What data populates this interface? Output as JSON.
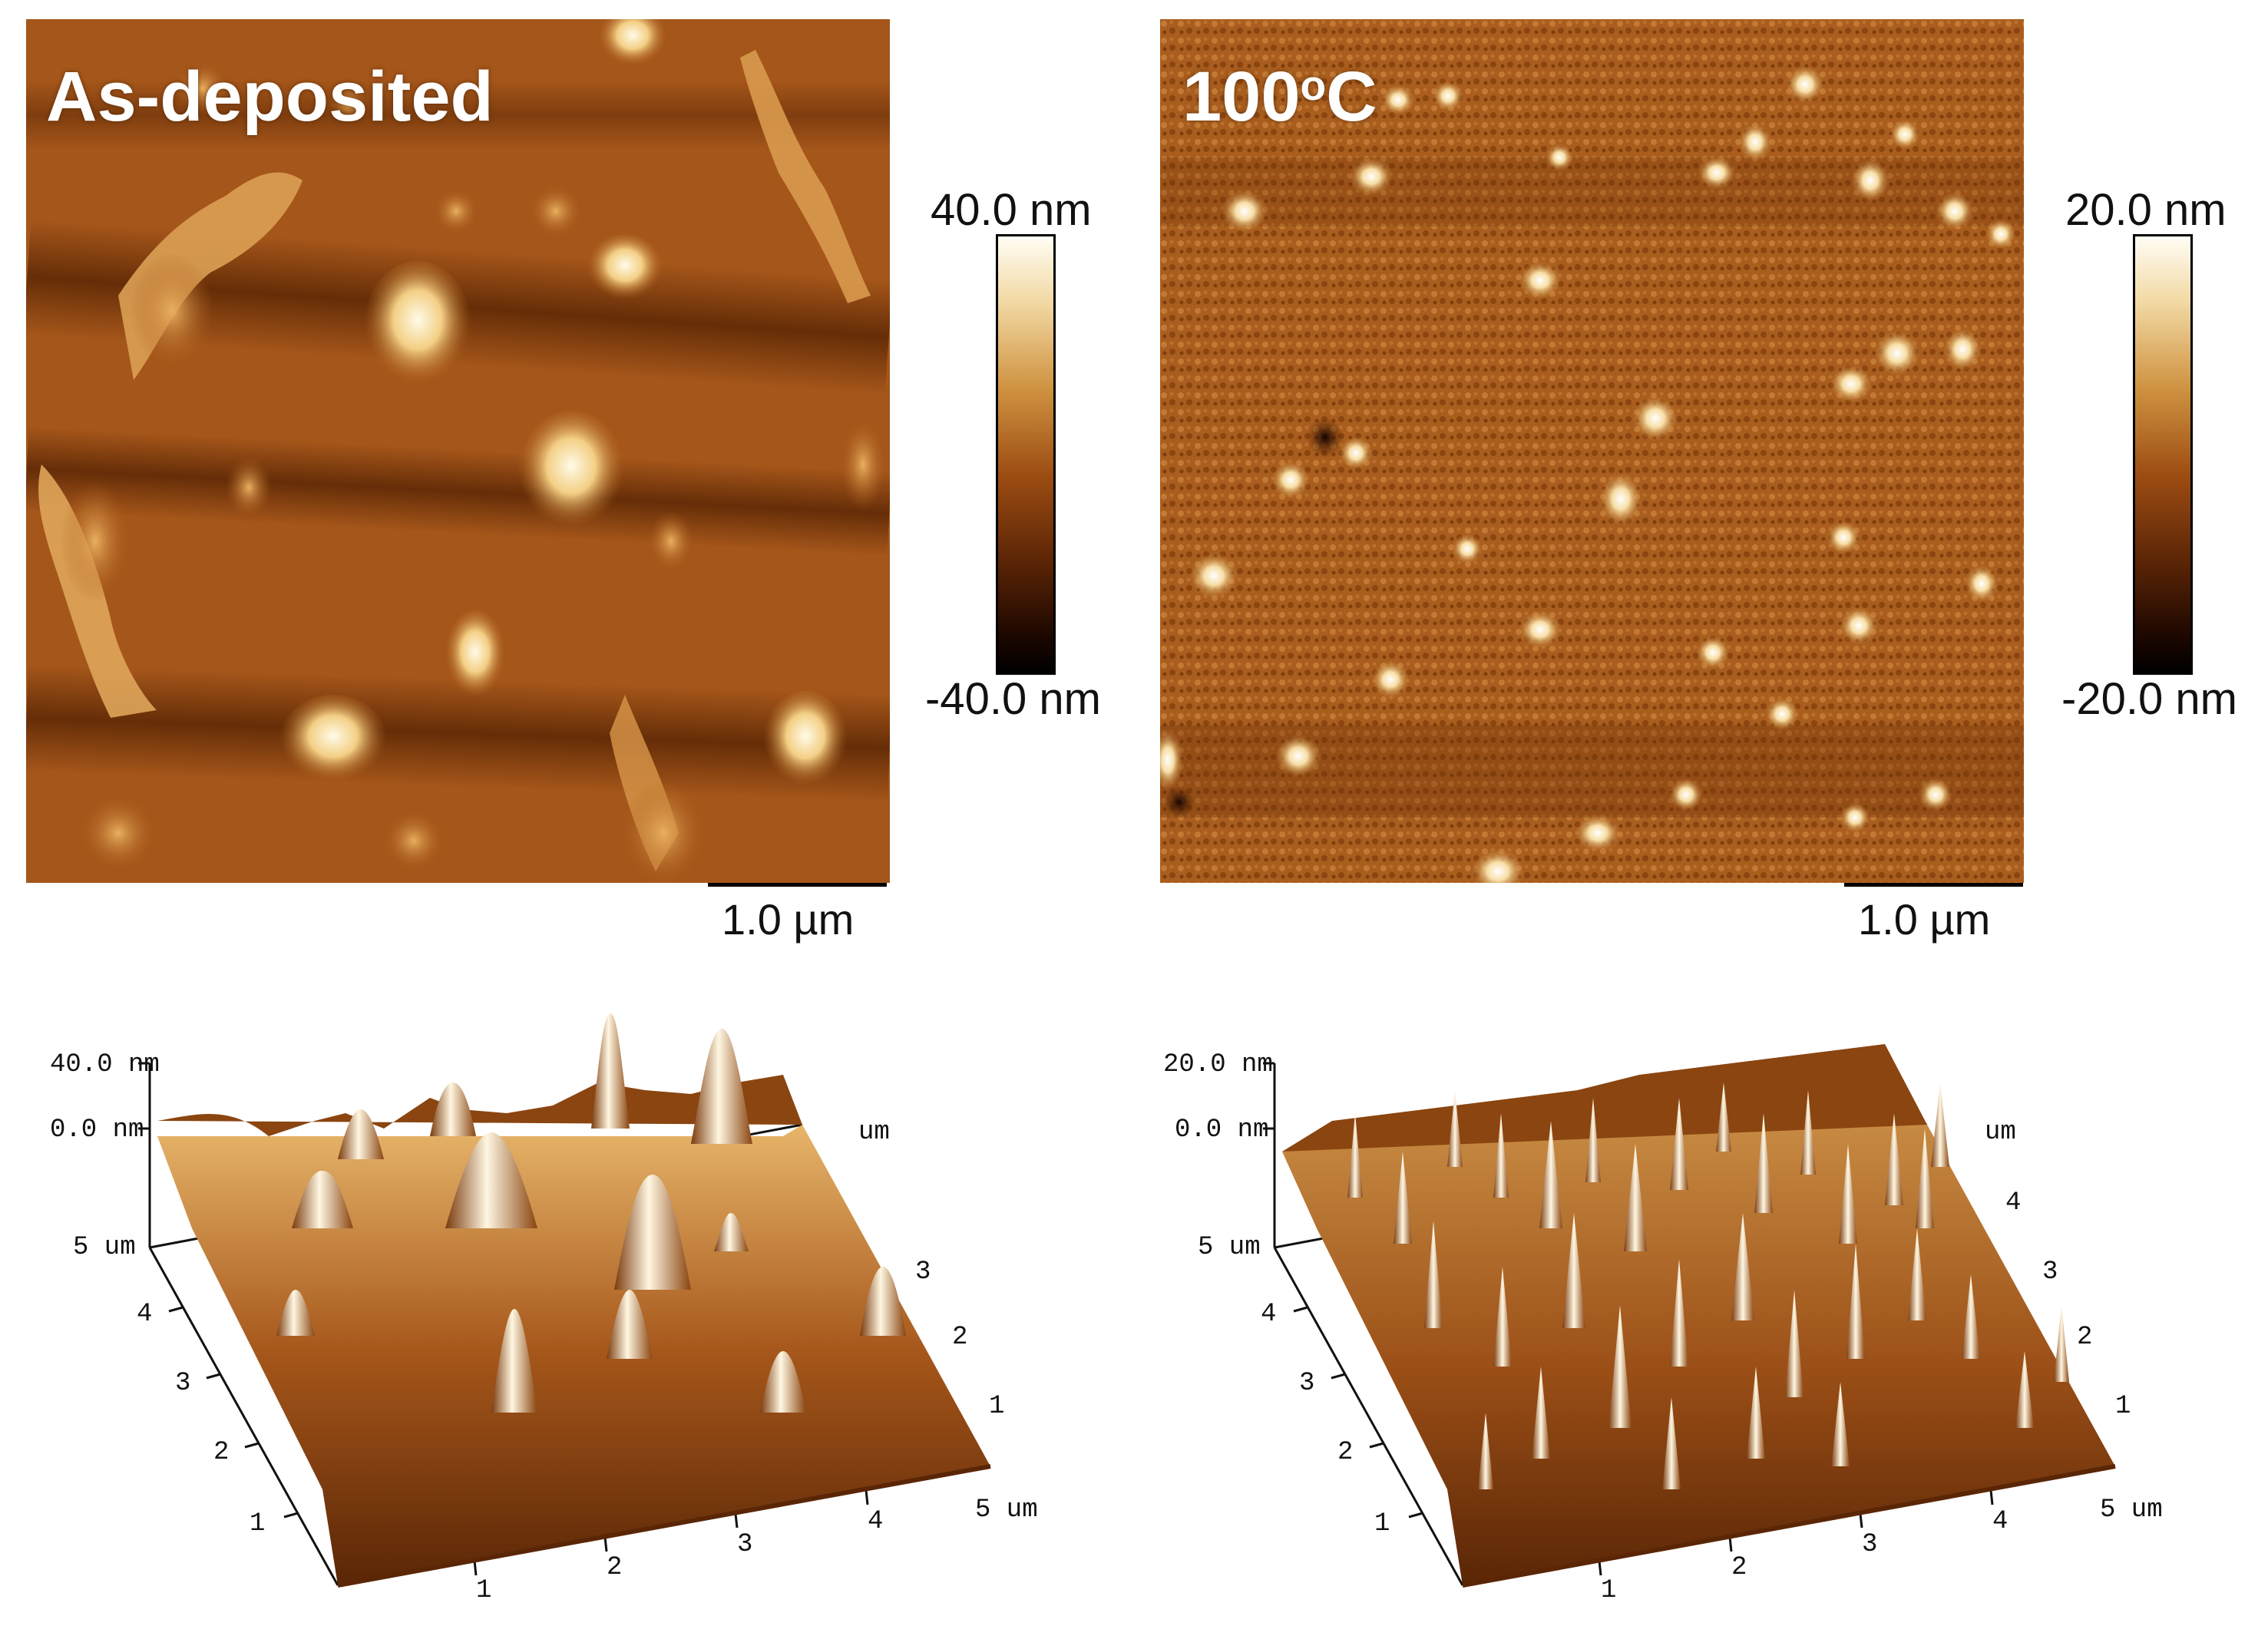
{
  "panels": [
    {
      "label": "As-deposited",
      "colorbar": {
        "max": "40.0 nm",
        "min": "-40.0 nm"
      },
      "scalebar": "1.0 µm"
    },
    {
      "label_main": "100",
      "label_sup": "o",
      "label_suffix": "C",
      "colorbar": {
        "max": "20.0 nm",
        "min": "-20.0 nm"
      },
      "scalebar": "1.0 µm"
    }
  ],
  "plots3d": [
    {
      "z_max": "40.0 nm",
      "z_zero": "0.0 nm",
      "y_ticks": [
        "5 um",
        "4",
        "3",
        "2",
        "1"
      ],
      "x_ticks": [
        "1",
        "2",
        "3",
        "4",
        "5 um"
      ],
      "right_ticks": [
        "um",
        "3",
        "2",
        "1"
      ]
    },
    {
      "z_max": "20.0 nm",
      "z_zero": "0.0 nm",
      "y_ticks": [
        "5 um",
        "4",
        "3",
        "2",
        "1"
      ],
      "x_ticks": [
        "1",
        "2",
        "3",
        "4",
        "5 um"
      ],
      "right_ticks": [
        "um",
        "4",
        "3",
        "2",
        "1"
      ]
    }
  ],
  "colors": {
    "afm_dark": "#1a0800",
    "afm_mid": "#9a4d12",
    "afm_light": "#fff6dc"
  }
}
